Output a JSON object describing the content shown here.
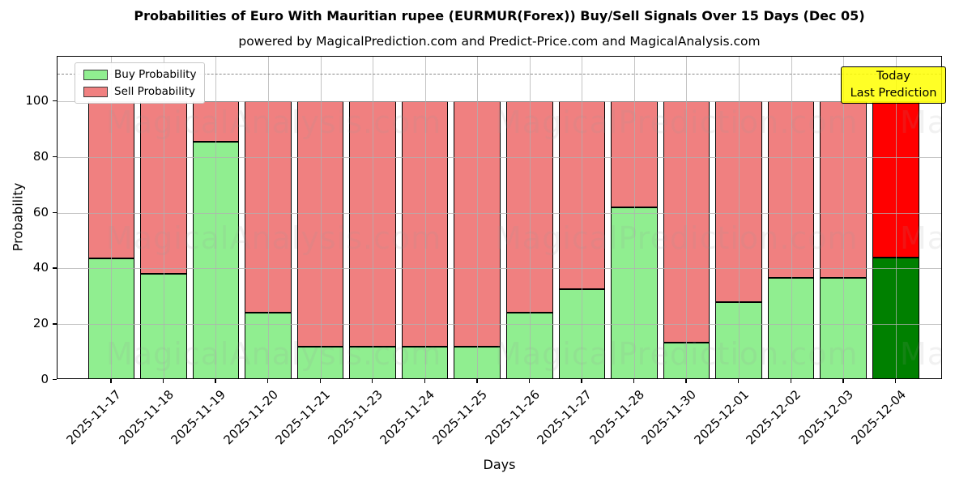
{
  "chart_data": {
    "type": "bar",
    "subtype": "stacked",
    "title": "Probabilities of Euro With Mauritian rupee (EURMUR(Forex)) Buy/Sell Signals Over 15 Days (Dec 05)",
    "subtitle": "powered by MagicalPrediction.com and Predict-Price.com and MagicalAnalysis.com",
    "xlabel": "Days",
    "ylabel": "Probability",
    "categories": [
      "2025-11-17",
      "2025-11-18",
      "2025-11-19",
      "2025-11-20",
      "2025-11-21",
      "2025-11-23",
      "2025-11-24",
      "2025-11-25",
      "2025-11-26",
      "2025-11-27",
      "2025-11-28",
      "2025-11-30",
      "2025-12-01",
      "2025-12-02",
      "2025-12-03",
      "2025-12-04"
    ],
    "series": [
      {
        "name": "Buy Probability",
        "color": "#90ee90",
        "last_bar_color": "#008000",
        "values": [
          43.5,
          38,
          85.5,
          24,
          12,
          12,
          12,
          12,
          24,
          32.5,
          62,
          13.5,
          28,
          36.5,
          36.5,
          44
        ]
      },
      {
        "name": "Sell Probability",
        "color": "#f08080",
        "last_bar_color": "#ff0000",
        "values": [
          56.5,
          62,
          14.5,
          76,
          88,
          88,
          88,
          88,
          76,
          67.5,
          38,
          86.5,
          72,
          63.5,
          63.5,
          56
        ]
      }
    ],
    "stack_total": 100,
    "ylim": [
      0,
      116
    ],
    "yticks": [
      0,
      20,
      40,
      60,
      80,
      100
    ],
    "threshold_line_y": 110,
    "grid": true,
    "legend_position": "upper left",
    "annotation_box": {
      "lines": [
        "Today",
        "Last Prediction"
      ],
      "bg_color": "#ffff00",
      "border_color": "#000000"
    },
    "watermark": {
      "texts": [
        "MagicalAnalysis.com",
        "MagicalPrediction.com"
      ],
      "color": "#999999"
    },
    "colors": {
      "bar_edge": "#000000",
      "grid": "#b0b0b0",
      "threshold_line": "#8a8a8a",
      "background": "#ffffff"
    }
  }
}
